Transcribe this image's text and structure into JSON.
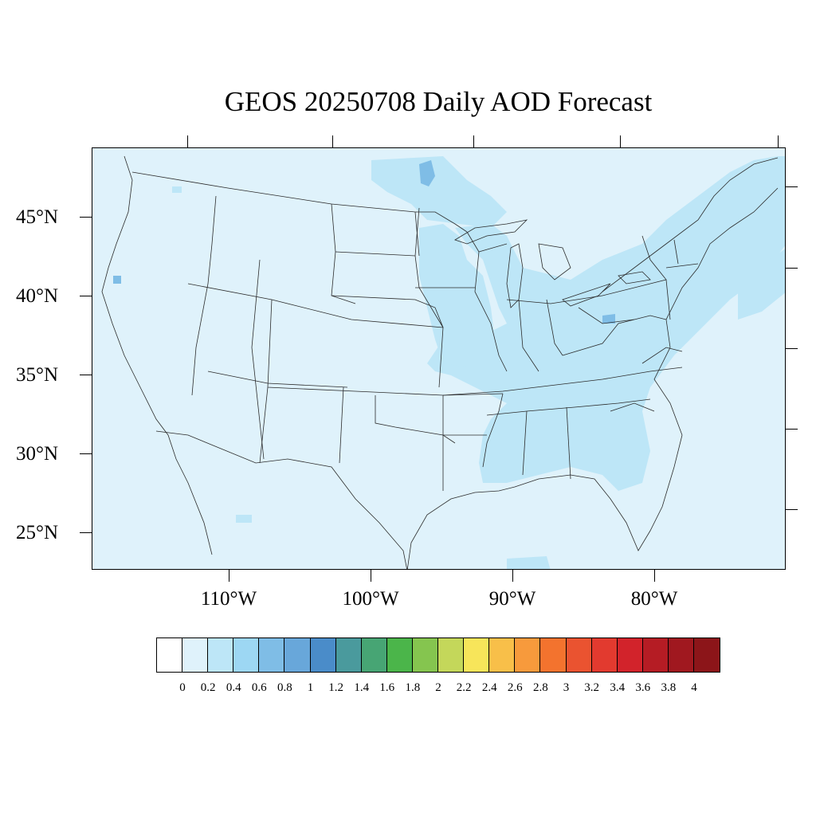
{
  "title": "GEOS 20250708 Daily AOD Forecast",
  "lat_labels": [
    "45°N",
    "40°N",
    "35°N",
    "30°N",
    "25°N"
  ],
  "lon_labels": [
    "110°W",
    "100°W",
    "90°W",
    "80°W"
  ],
  "colorbar": {
    "labels": [
      "0",
      "0.2",
      "0.4",
      "0.6",
      "0.8",
      "1",
      "1.2",
      "1.4",
      "1.6",
      "1.8",
      "2",
      "2.2",
      "2.4",
      "2.6",
      "2.8",
      "3",
      "3.2",
      "3.4",
      "3.6",
      "3.8",
      "4"
    ],
    "colors": [
      "#ffffff",
      "#dff2fb",
      "#bde6f7",
      "#9dd7f3",
      "#7fbde6",
      "#68a7da",
      "#4a8cc9",
      "#4a9a9d",
      "#47a574",
      "#4bb54a",
      "#85c54f",
      "#c4d75a",
      "#f7e55a",
      "#f8bf49",
      "#f79a3c",
      "#f3732e",
      "#ea5330",
      "#e23a2f",
      "#d2232b",
      "#b51c24",
      "#a0181f",
      "#8c1519"
    ]
  },
  "map": {
    "background_color": "#dff2fb",
    "elevated_color": "#bde6f7",
    "peak_color": "#7fbde6"
  }
}
